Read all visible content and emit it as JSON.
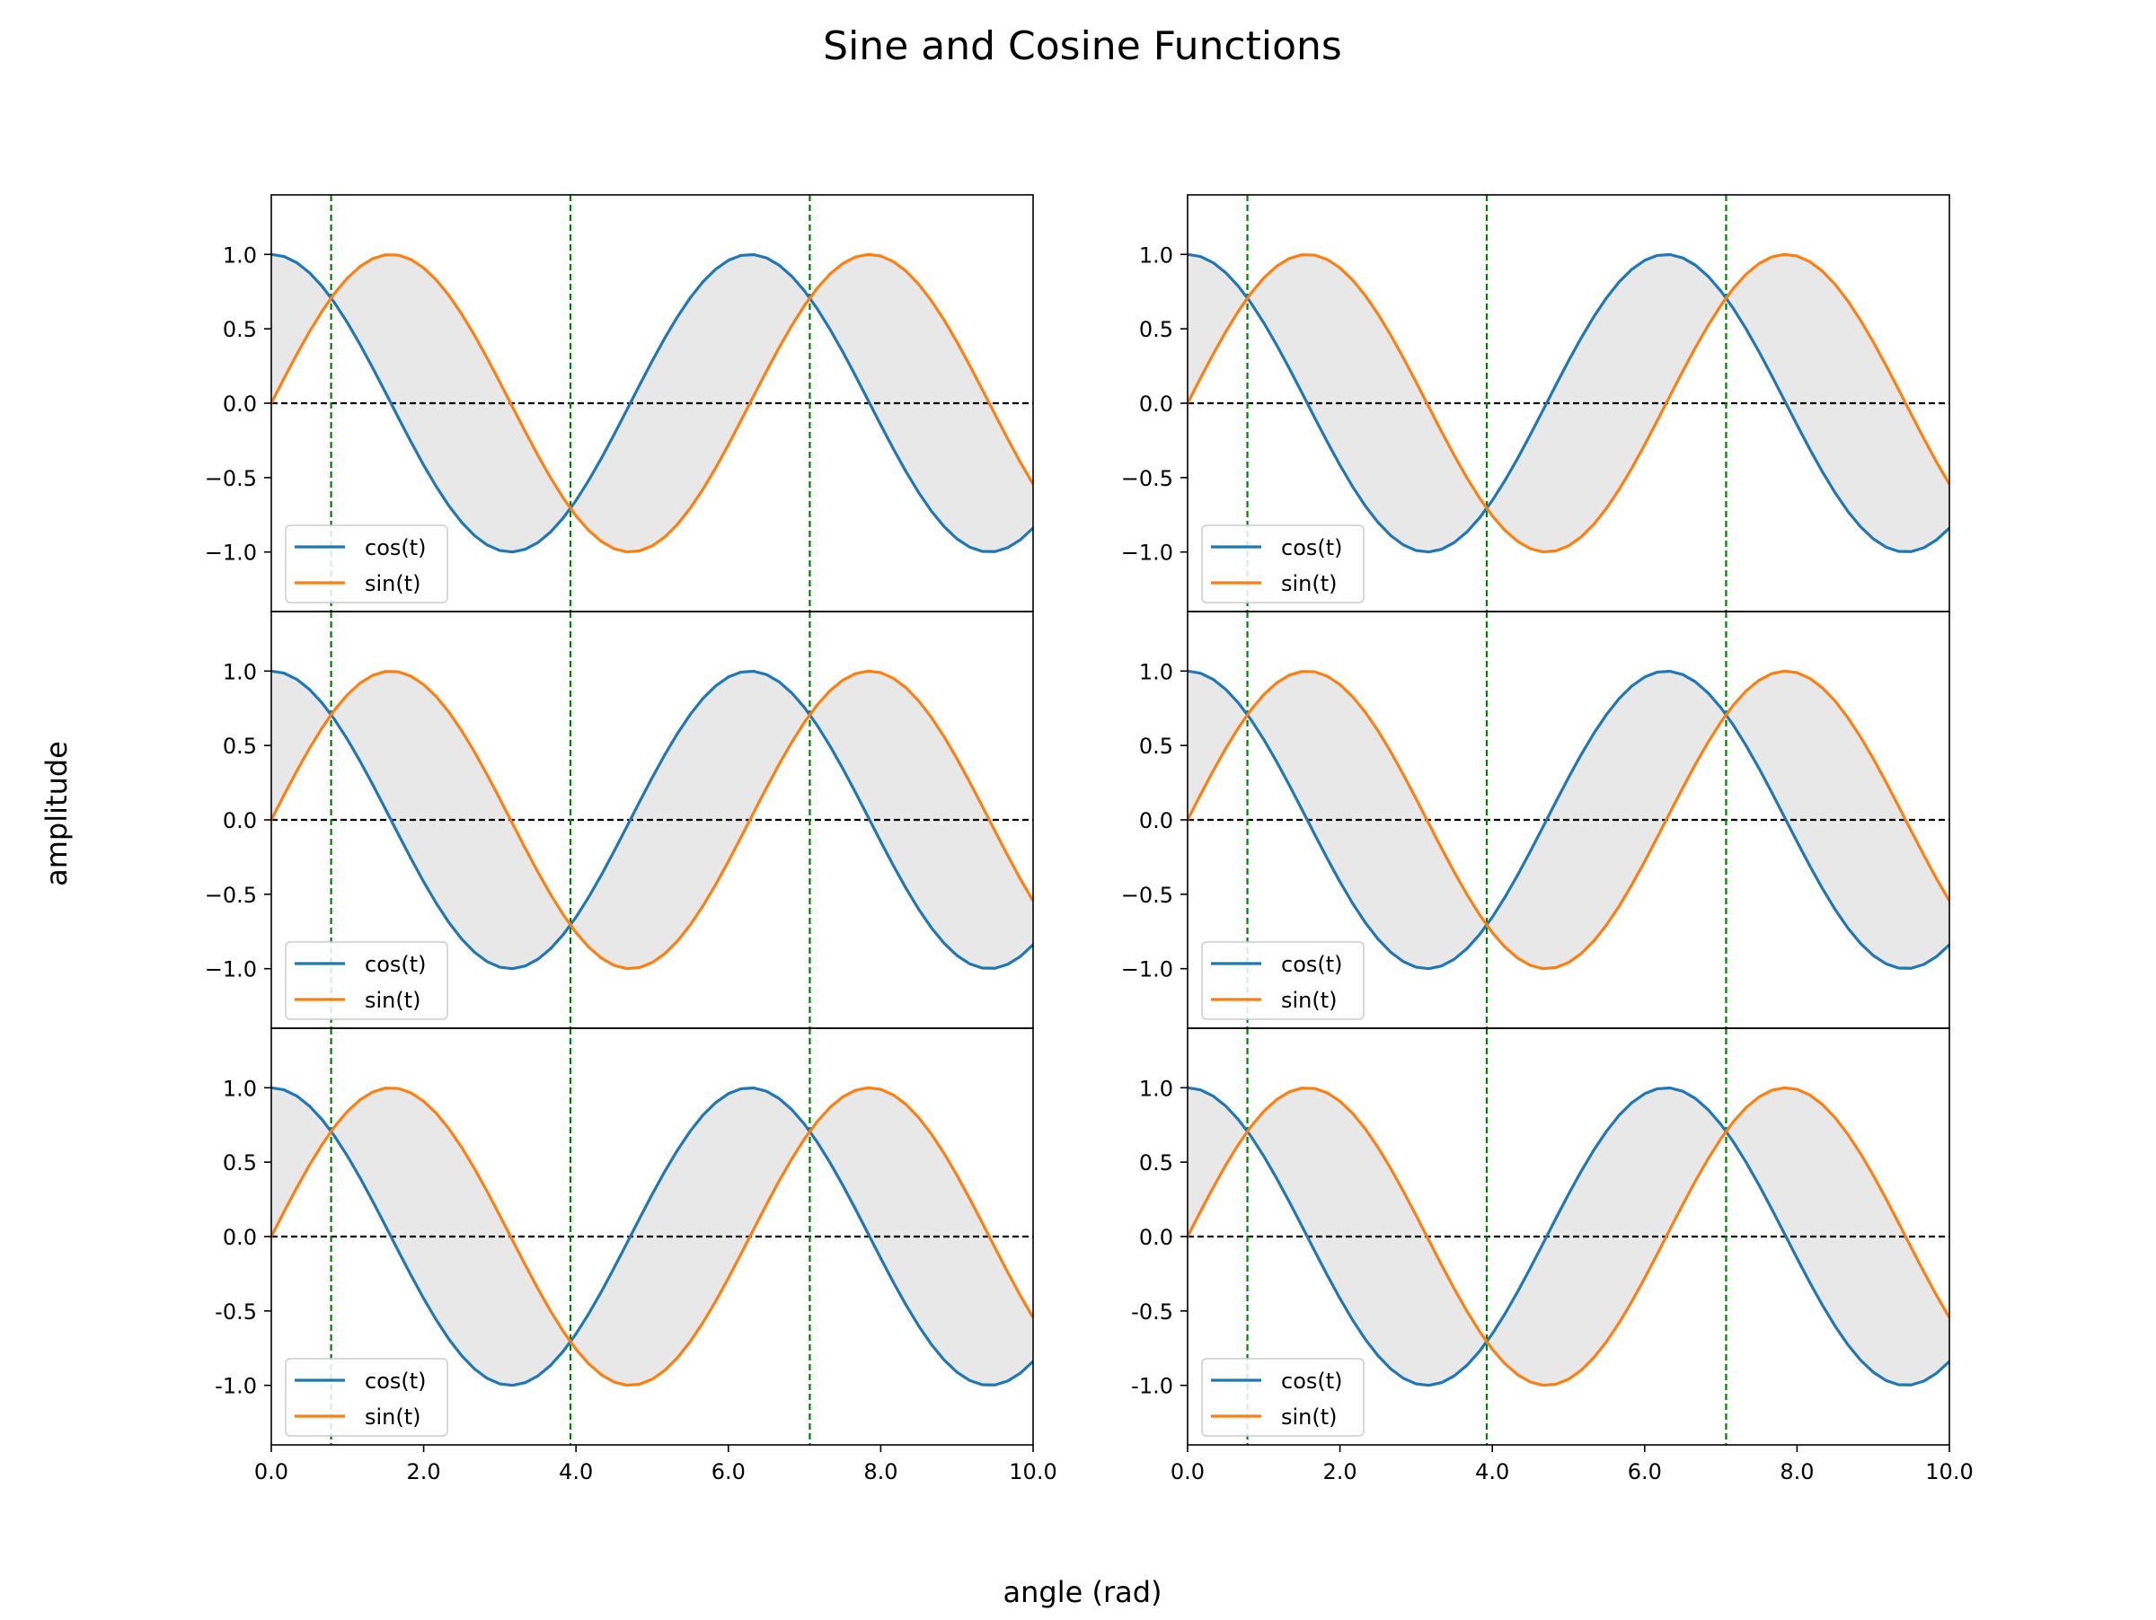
{
  "figure": {
    "title": "Sine and Cosine Functions",
    "xlabel": "angle (rad)",
    "ylabel": "amplitude"
  },
  "colors": {
    "cos": "#1f77b4",
    "sin": "#ff7f0e",
    "vline": "#008000",
    "hline": "#000000",
    "fill": "#e8e8e8"
  },
  "chart_data": [
    {
      "type": "line",
      "panel": "row1-col1",
      "x_range": [
        0,
        10
      ],
      "ylim": [
        -1.4,
        1.4
      ],
      "function_samples_x": "0 to 10",
      "series": [
        {
          "name": "cos(t)",
          "function": "cos"
        },
        {
          "name": "sin(t)",
          "function": "sin"
        }
      ],
      "vlines": [
        0.785,
        3.927,
        7.069
      ],
      "hline": 0,
      "fill_between": "sin(t) and cos(t)",
      "yticks": [
        1.0,
        0.5,
        0.0,
        -0.5,
        -1.0
      ],
      "ytick_labels": [
        "1.0",
        "0.5",
        "0.0",
        "−0.5",
        "−1.0"
      ],
      "xticks": [],
      "xtick_labels": [],
      "legend": "lower-left",
      "grid": false
    },
    {
      "type": "line",
      "panel": "row1-col2",
      "x_range": [
        0,
        10
      ],
      "ylim": [
        -1.4,
        1.4
      ],
      "function_samples_x": "0 to 10",
      "series": [
        {
          "name": "cos(t)",
          "function": "cos"
        },
        {
          "name": "sin(t)",
          "function": "sin"
        }
      ],
      "vlines": [
        0.785,
        3.927,
        7.069
      ],
      "hline": 0,
      "fill_between": "sin(t) and cos(t)",
      "yticks": [
        1.0,
        0.5,
        0.0,
        -0.5,
        -1.0
      ],
      "ytick_labels": [
        "1.0",
        "0.5",
        "0.0",
        "−0.5",
        "−1.0"
      ],
      "xticks": [],
      "xtick_labels": [],
      "legend": "lower-left",
      "grid": false
    },
    {
      "type": "line",
      "panel": "row2-col1",
      "x_range": [
        0,
        10
      ],
      "ylim": [
        -1.4,
        1.4
      ],
      "function_samples_x": "0 to 10",
      "series": [
        {
          "name": "cos(t)",
          "function": "cos"
        },
        {
          "name": "sin(t)",
          "function": "sin"
        }
      ],
      "vlines": [
        0.785,
        3.927,
        7.069
      ],
      "hline": 0,
      "fill_between": "sin(t) and cos(t)",
      "yticks": [
        1.0,
        0.5,
        0.0,
        -0.5,
        -1.0
      ],
      "ytick_labels": [
        "1.0",
        "0.5",
        "0.0",
        "−0.5",
        "−1.0"
      ],
      "xticks": [],
      "xtick_labels": [],
      "legend": "lower-left",
      "grid": false
    },
    {
      "type": "line",
      "panel": "row2-col2",
      "x_range": [
        0,
        10
      ],
      "ylim": [
        -1.4,
        1.4
      ],
      "function_samples_x": "0 to 10",
      "series": [
        {
          "name": "cos(t)",
          "function": "cos"
        },
        {
          "name": "sin(t)",
          "function": "sin"
        }
      ],
      "vlines": [
        0.785,
        3.927,
        7.069
      ],
      "hline": 0,
      "fill_between": "sin(t) and cos(t)",
      "yticks": [
        1.0,
        0.5,
        0.0,
        -0.5,
        -1.0
      ],
      "ytick_labels": [
        "1.0",
        "0.5",
        "0.0",
        "−0.5",
        "−1.0"
      ],
      "xticks": [],
      "xtick_labels": [],
      "legend": "lower-left",
      "grid": false
    },
    {
      "type": "line",
      "panel": "row3-col1",
      "x_range": [
        0,
        10
      ],
      "ylim": [
        -1.4,
        1.4
      ],
      "function_samples_x": "0 to 10",
      "series": [
        {
          "name": "cos(t)",
          "function": "cos"
        },
        {
          "name": "sin(t)",
          "function": "sin"
        }
      ],
      "vlines": [
        0.785,
        3.927,
        7.069
      ],
      "hline": 0,
      "fill_between": "sin(t) and cos(t)",
      "yticks": [
        1.0,
        0.5,
        0.0,
        -0.5,
        -1.0
      ],
      "ytick_labels": [
        "1.0",
        "0.5",
        "0.0",
        "-0.5",
        "-1.0"
      ],
      "xticks": [
        0,
        2,
        4,
        6,
        8,
        10
      ],
      "xtick_labels": [
        "0.0",
        "2.0",
        "4.0",
        "6.0",
        "8.0",
        "10.0"
      ],
      "legend": "lower-left",
      "grid": false
    },
    {
      "type": "line",
      "panel": "row3-col2",
      "x_range": [
        0,
        10
      ],
      "ylim": [
        -1.4,
        1.4
      ],
      "function_samples_x": "0 to 10",
      "series": [
        {
          "name": "cos(t)",
          "function": "cos"
        },
        {
          "name": "sin(t)",
          "function": "sin"
        }
      ],
      "vlines": [
        0.785,
        3.927,
        7.069
      ],
      "hline": 0,
      "fill_between": "sin(t) and cos(t)",
      "yticks": [
        1.0,
        0.5,
        0.0,
        -0.5,
        -1.0
      ],
      "ytick_labels": [
        "1.0",
        "0.5",
        "0.0",
        "-0.5",
        "-1.0"
      ],
      "xticks": [
        0,
        2,
        4,
        6,
        8,
        10
      ],
      "xtick_labels": [
        "0.0",
        "2.0",
        "4.0",
        "6.0",
        "8.0",
        "10.0"
      ],
      "legend": "lower-left",
      "grid": false
    }
  ]
}
